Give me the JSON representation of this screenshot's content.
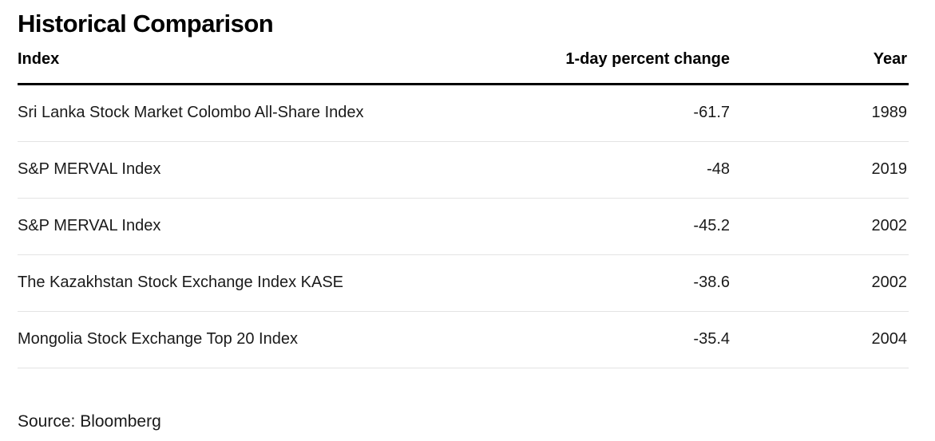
{
  "title": "Historical Comparison",
  "source": "Source: Bloomberg",
  "chart_data": {
    "type": "table",
    "title": "Historical Comparison",
    "columns": [
      "Index",
      "1-day percent change",
      "Year"
    ],
    "rows": [
      [
        "Sri Lanka Stock Market Colombo All-Share Index",
        "-61.7",
        "1989"
      ],
      [
        "S&P MERVAL Index",
        "-48",
        "2019"
      ],
      [
        "S&P MERVAL Index",
        "-45.2",
        "2002"
      ],
      [
        "The Kazakhstan Stock Exchange Index KASE",
        "-38.6",
        "2002"
      ],
      [
        "Mongolia Stock Exchange Top 20 Index",
        "-35.4",
        "2004"
      ]
    ],
    "source": "Source: Bloomberg"
  }
}
